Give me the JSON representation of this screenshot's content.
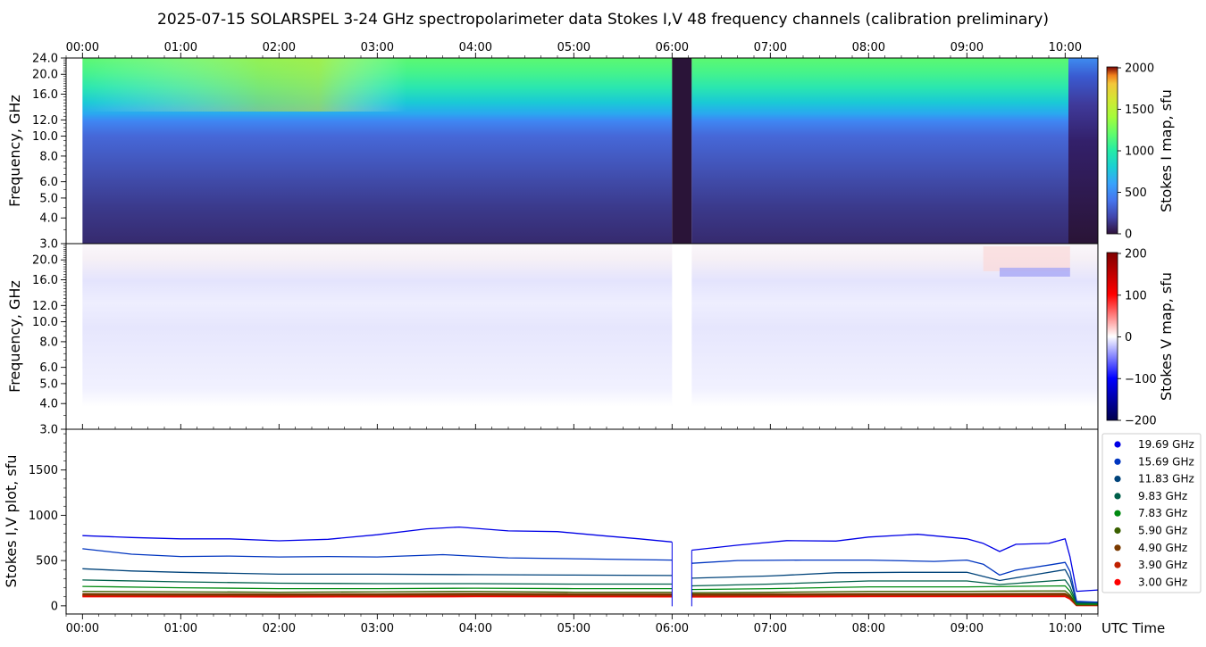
{
  "title": "2025-07-15  SOLARSPEL  3-24 GHz spectropolarimeter data   Stokes I,V   48 frequency channels   (calibration preliminary)",
  "chart_data": [
    {
      "type": "heatmap",
      "name": "stokes-i-map",
      "ylabel": "Frequency, GHz",
      "colorbar_label": "Stokes I map, sfu",
      "yscale": "log",
      "ylim": [
        3.0,
        24.0
      ],
      "xlim": [
        "23:50",
        "10:20"
      ],
      "yticks": [
        "3.0",
        "4.0",
        "5.0",
        "6.0",
        "8.0",
        "10.0",
        "12.0",
        "16.0",
        "20.0",
        "24.0"
      ],
      "xticks": [
        "00:00",
        "01:00",
        "02:00",
        "03:00",
        "04:00",
        "05:00",
        "06:00",
        "07:00",
        "08:00",
        "09:00",
        "10:00"
      ],
      "colorbar": {
        "min": 0,
        "max": 2000,
        "ticks": [
          "0",
          "500",
          "1000",
          "1500",
          "2000"
        ],
        "colormap": "turbo-like"
      },
      "data_start": "00:00",
      "gap": [
        "06:00",
        "06:12"
      ],
      "data_end_drop": "10:02",
      "freq_profile": [
        {
          "ghz": 3.0,
          "sfu": 150
        },
        {
          "ghz": 4.0,
          "sfu": 180
        },
        {
          "ghz": 5.0,
          "sfu": 220
        },
        {
          "ghz": 6.0,
          "sfu": 260
        },
        {
          "ghz": 8.0,
          "sfu": 310
        },
        {
          "ghz": 10.0,
          "sfu": 380
        },
        {
          "ghz": 12.0,
          "sfu": 430
        },
        {
          "ghz": 13.5,
          "sfu": 600
        },
        {
          "ghz": 16.0,
          "sfu": 720
        },
        {
          "ghz": 20.0,
          "sfu": 860
        },
        {
          "ghz": 24.0,
          "sfu": 940
        }
      ]
    },
    {
      "type": "heatmap",
      "name": "stokes-v-map",
      "ylabel": "Frequency, GHz",
      "colorbar_label": "Stokes V map, sfu",
      "yscale": "log",
      "ylim": [
        3.0,
        24.0
      ],
      "xlim": [
        "23:50",
        "10:20"
      ],
      "yticks": [
        "3.0",
        "4.0",
        "5.0",
        "6.0",
        "8.0",
        "10.0",
        "12.0",
        "16.0",
        "20.0"
      ],
      "colorbar": {
        "min": -200,
        "max": 200,
        "ticks": [
          "200",
          "100",
          "0",
          "−100",
          "−200"
        ],
        "colormap": "seismic"
      }
    },
    {
      "type": "line",
      "name": "stokes-iv-plot",
      "ylabel": "Stokes I,V plot, sfu",
      "xlabel": "UTC Time",
      "ylim": [
        -90,
        1950
      ],
      "yticks": [
        0,
        500,
        1000,
        1500
      ],
      "xticks": [
        "00:00",
        "01:00",
        "02:00",
        "03:00",
        "04:00",
        "05:00",
        "06:00",
        "07:00",
        "08:00",
        "09:00",
        "10:00"
      ],
      "legend_position": "right",
      "series": [
        {
          "name": "19.69 GHz",
          "color": "#0000e6",
          "x": [
            "00:00",
            "00:30",
            "01:00",
            "01:30",
            "02:00",
            "02:30",
            "03:00",
            "03:30",
            "03:50",
            "04:20",
            "04:50",
            "05:20",
            "05:40",
            "06:00",
            "06:12",
            "06:40",
            "07:10",
            "07:40",
            "08:00",
            "08:30",
            "09:00",
            "09:10",
            "09:20",
            "09:30",
            "09:50",
            "10:00",
            "10:03",
            "10:07",
            "10:20"
          ],
          "y": [
            775,
            755,
            740,
            740,
            718,
            735,
            785,
            850,
            870,
            828,
            820,
            770,
            740,
            705,
            615,
            670,
            720,
            715,
            760,
            790,
            740,
            690,
            600,
            680,
            690,
            740,
            540,
            160,
            175
          ]
        },
        {
          "name": "15.69 GHz",
          "color": "#0035c0",
          "x": [
            "00:00",
            "00:30",
            "01:00",
            "01:30",
            "02:00",
            "02:30",
            "03:00",
            "03:40",
            "04:20",
            "05:00",
            "05:40",
            "06:00",
            "06:12",
            "06:40",
            "07:20",
            "08:00",
            "08:40",
            "09:00",
            "09:10",
            "09:20",
            "09:30",
            "09:50",
            "10:00",
            "10:03",
            "10:07",
            "10:20"
          ],
          "y": [
            630,
            570,
            545,
            550,
            540,
            545,
            540,
            565,
            530,
            520,
            510,
            505,
            470,
            500,
            505,
            505,
            490,
            505,
            460,
            340,
            395,
            450,
            480,
            380,
            50,
            40
          ]
        },
        {
          "name": "11.83 GHz",
          "color": "#00437a",
          "x": [
            "00:00",
            "00:30",
            "01:00",
            "02:00",
            "03:00",
            "04:00",
            "05:00",
            "06:00",
            "06:12",
            "07:00",
            "07:40",
            "08:20",
            "09:00",
            "09:20",
            "09:40",
            "10:00",
            "10:03",
            "10:07",
            "10:20"
          ],
          "y": [
            410,
            385,
            370,
            350,
            350,
            345,
            340,
            335,
            305,
            330,
            365,
            370,
            370,
            280,
            340,
            400,
            300,
            40,
            40
          ]
        },
        {
          "name": "9.83 GHz",
          "color": "#005f4a",
          "x": [
            "00:00",
            "01:00",
            "02:00",
            "03:00",
            "04:00",
            "05:00",
            "06:00",
            "06:12",
            "07:00",
            "08:00",
            "09:00",
            "09:20",
            "10:00",
            "10:03",
            "10:07",
            "10:20"
          ],
          "y": [
            285,
            265,
            250,
            245,
            245,
            240,
            240,
            220,
            240,
            275,
            275,
            235,
            285,
            210,
            30,
            30
          ]
        },
        {
          "name": "7.83 GHz",
          "color": "#008a10",
          "x": [
            "00:00",
            "01:00",
            "02:00",
            "03:00",
            "04:00",
            "05:00",
            "06:00",
            "06:12",
            "07:00",
            "08:00",
            "09:00",
            "10:00",
            "10:03",
            "10:07",
            "10:20"
          ],
          "y": [
            215,
            200,
            190,
            190,
            195,
            190,
            190,
            180,
            190,
            210,
            210,
            220,
            160,
            20,
            20
          ]
        },
        {
          "name": "5.90 GHz",
          "color": "#3a6000",
          "x": [
            "00:00",
            "01:00",
            "02:00",
            "03:00",
            "04:00",
            "05:00",
            "06:00",
            "06:12",
            "07:00",
            "08:00",
            "09:00",
            "10:00",
            "10:03",
            "10:07",
            "10:20"
          ],
          "y": [
            160,
            155,
            150,
            155,
            160,
            150,
            150,
            145,
            150,
            160,
            160,
            165,
            120,
            15,
            15
          ]
        },
        {
          "name": "4.90 GHz",
          "color": "#7a3a00",
          "x": [
            "00:00",
            "01:00",
            "02:00",
            "03:00",
            "04:00",
            "05:00",
            "06:00",
            "06:12",
            "07:00",
            "08:00",
            "09:00",
            "10:00",
            "10:03",
            "10:07",
            "10:20"
          ],
          "y": [
            130,
            128,
            126,
            128,
            132,
            128,
            127,
            125,
            127,
            130,
            130,
            132,
            100,
            12,
            12
          ]
        },
        {
          "name": "3.90 GHz",
          "color": "#c02000",
          "x": [
            "00:00",
            "01:00",
            "02:00",
            "03:00",
            "04:00",
            "05:00",
            "06:00",
            "06:12",
            "07:00",
            "08:00",
            "09:00",
            "10:00",
            "10:03",
            "10:07",
            "10:20"
          ],
          "y": [
            115,
            113,
            112,
            113,
            116,
            114,
            113,
            112,
            113,
            115,
            115,
            117,
            90,
            10,
            10
          ]
        },
        {
          "name": "3.00 GHz",
          "color": "#ff0000",
          "x": [
            "00:00",
            "01:00",
            "02:00",
            "03:00",
            "04:00",
            "05:00",
            "06:00",
            "06:12",
            "07:00",
            "08:00",
            "09:00",
            "10:00",
            "10:03",
            "10:07",
            "10:20"
          ],
          "y": [
            105,
            104,
            103,
            104,
            106,
            105,
            104,
            103,
            104,
            106,
            106,
            107,
            80,
            8,
            8
          ]
        }
      ],
      "v_series_baseline": [
        {
          "color": "#0000e6",
          "x": [
            "00:00",
            "10:20"
          ],
          "y": [
            -5,
            -5
          ]
        },
        {
          "color": "#0035c0",
          "x": [
            "00:00",
            "10:20"
          ],
          "y": [
            -3,
            -3
          ]
        }
      ]
    }
  ]
}
